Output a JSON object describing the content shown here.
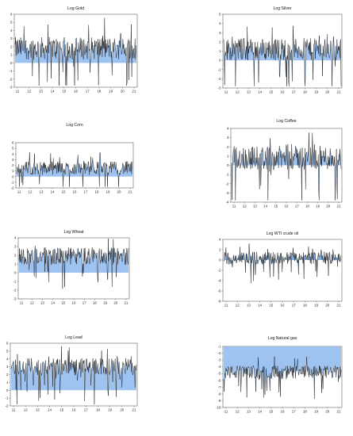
{
  "chart_data": [
    {
      "type": "area",
      "title": "Log Gold",
      "x_tick_labels": [
        "11",
        "12",
        "13",
        "14",
        "15",
        "16",
        "17",
        "18",
        "19",
        "20",
        "21"
      ],
      "y_ticks": [
        -3,
        -2,
        -1,
        0,
        1,
        2,
        3,
        4,
        5,
        6
      ],
      "ylim": [
        -3,
        6
      ],
      "baseline": 0,
      "level": 1.8,
      "spread": 1.4,
      "series_color": "#8db8ef"
    },
    {
      "type": "area",
      "title": "Log Silver",
      "x_tick_labels": [
        "11",
        "12",
        "13",
        "14",
        "15",
        "16",
        "17",
        "18",
        "19",
        "20",
        "21"
      ],
      "y_ticks": [
        -3,
        -2,
        -1,
        0,
        1,
        2,
        3,
        4,
        5
      ],
      "ylim": [
        -3,
        5
      ],
      "baseline": 0,
      "level": 1.2,
      "spread": 1.2,
      "series_color": "#8db8ef"
    },
    {
      "type": "area",
      "title": "Log Corn",
      "x_tick_labels": [
        "11",
        "12",
        "13",
        "14",
        "15",
        "16",
        "17",
        "18",
        "19",
        "20",
        "21"
      ],
      "y_ticks": [
        -2,
        -1,
        0,
        1,
        2,
        3,
        4,
        5,
        6
      ],
      "ylim": [
        -2,
        6
      ],
      "baseline": 0,
      "level": 1.5,
      "spread": 1.2,
      "series_color": "#8db8ef"
    },
    {
      "type": "area",
      "title": "Log Coffee",
      "x_tick_labels": [
        "11",
        "12",
        "13",
        "14",
        "15",
        "16",
        "17",
        "18",
        "19",
        "20",
        "21"
      ],
      "y_ticks": [
        -4,
        -3,
        -2,
        -1,
        0,
        1,
        2,
        3,
        4
      ],
      "ylim": [
        -4,
        4
      ],
      "baseline": 0,
      "level": 0.8,
      "spread": 1.3,
      "series_color": "#8db8ef"
    },
    {
      "type": "area",
      "title": "Log Wheat",
      "x_tick_labels": [
        "11",
        "12",
        "13",
        "14",
        "15",
        "16",
        "17",
        "18",
        "19",
        "20",
        "21"
      ],
      "y_ticks": [
        -3,
        -2,
        -1,
        0,
        1,
        2,
        3,
        4
      ],
      "ylim": [
        -3,
        4
      ],
      "baseline": 0,
      "level": 1.9,
      "spread": 1.0,
      "series_color": "#8db8ef"
    },
    {
      "type": "area",
      "title": "Log WTI crude oil",
      "x_tick_labels": [
        "11",
        "12",
        "13",
        "14",
        "15",
        "16",
        "17",
        "18",
        "19",
        "20",
        "21"
      ],
      "y_ticks": [
        -8,
        -6,
        -4,
        -2,
        0,
        2,
        4
      ],
      "ylim": [
        -8,
        4
      ],
      "baseline": 0,
      "level": 0.4,
      "spread": 1.2,
      "series_color": "#6f9fd6"
    },
    {
      "type": "area",
      "title": "Log Lead",
      "x_tick_labels": [
        "11",
        "12",
        "13",
        "14",
        "15",
        "16",
        "17",
        "18",
        "19",
        "20",
        "21"
      ],
      "y_ticks": [
        -2,
        -1,
        0,
        1,
        2,
        3,
        4,
        5,
        6
      ],
      "ylim": [
        -2,
        6
      ],
      "baseline": 0,
      "level": 3.0,
      "spread": 1.1,
      "series_color": "#8db8ef"
    },
    {
      "type": "area",
      "title": "Log Natural gas",
      "x_tick_labels": [
        "11",
        "12",
        "13",
        "14",
        "15",
        "16",
        "17",
        "18",
        "19",
        "20",
        "21"
      ],
      "y_ticks": [
        -10,
        -9,
        -8,
        -7,
        -6,
        -5,
        -4,
        -3,
        -2,
        -1
      ],
      "ylim": [
        -10,
        -1
      ],
      "baseline": -1,
      "level": -4.8,
      "spread": 1.0,
      "series_color": "#8db8ef"
    }
  ]
}
